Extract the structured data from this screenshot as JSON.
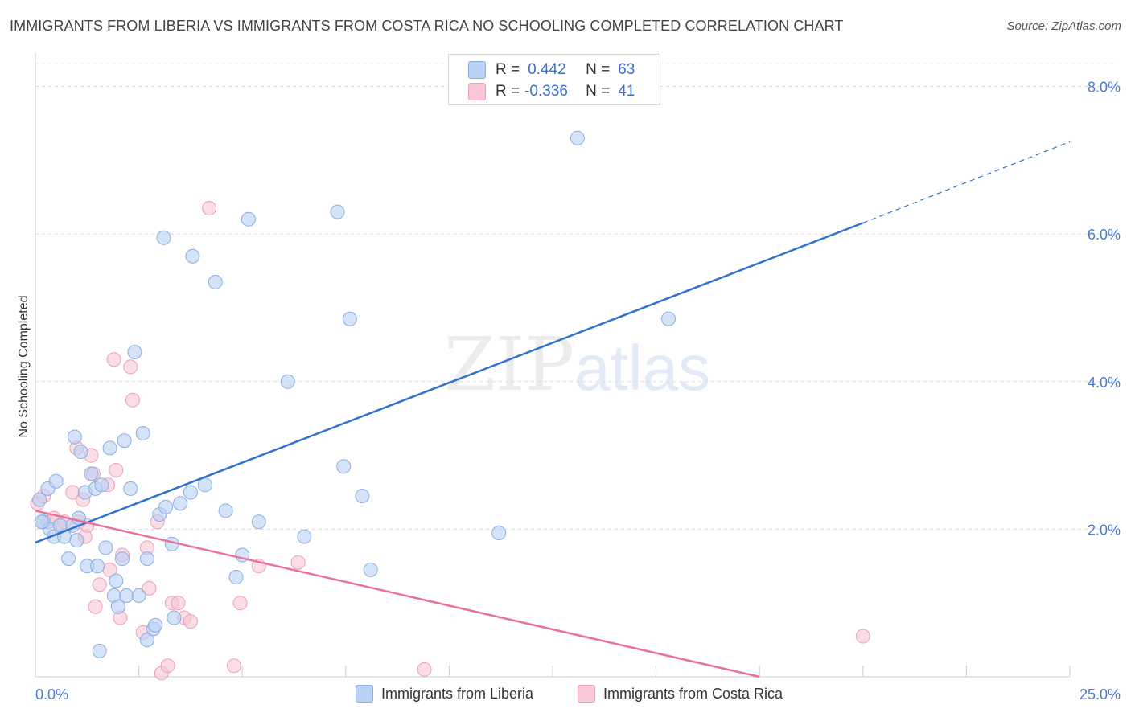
{
  "title": "IMMIGRANTS FROM LIBERIA VS IMMIGRANTS FROM COSTA RICA NO SCHOOLING COMPLETED CORRELATION CHART",
  "source": "Source: ZipAtlas.com",
  "watermark": {
    "zip": "ZIP",
    "atlas": "atlas"
  },
  "legend": {
    "r_label": "R =",
    "n_label": "N =",
    "liberia": {
      "r": "0.442",
      "n": "63"
    },
    "costa_rica": {
      "r": "-0.336",
      "n": "41"
    }
  },
  "colors": {
    "liberia_fill": "#b9d1f5",
    "liberia_stroke": "#8aaee0",
    "liberia_line": "#2f72d0",
    "costa_rica_fill": "#f8c6d6",
    "costa_rica_stroke": "#eaa0b9",
    "costa_rica_line": "#e8729b",
    "tick": "#4a7bd0"
  },
  "chart_data": {
    "type": "scatter",
    "title": "IMMIGRANTS FROM LIBERIA VS IMMIGRANTS FROM COSTA RICA NO SCHOOLING COMPLETED CORRELATION CHART",
    "xlabel": "",
    "ylabel": "No Schooling Completed",
    "xlim": [
      0,
      25
    ],
    "ylim": [
      0,
      8.3
    ],
    "x_ticks_labeled": [
      "0.0%",
      "25.0%"
    ],
    "y_ticks": [
      2,
      4,
      6,
      8
    ],
    "y_tick_labels": [
      "2.0%",
      "4.0%",
      "6.0%",
      "8.0%"
    ],
    "grid": "horizontal dashed",
    "legend_position": "top-center",
    "series": [
      {
        "name": "Immigrants from Liberia",
        "points": [
          [
            0.1,
            2.4
          ],
          [
            0.2,
            2.1
          ],
          [
            0.3,
            2.55
          ],
          [
            0.35,
            2.0
          ],
          [
            0.45,
            1.9
          ],
          [
            0.5,
            2.65
          ],
          [
            0.6,
            2.05
          ],
          [
            0.7,
            1.9
          ],
          [
            0.8,
            1.6
          ],
          [
            0.9,
            2.05
          ],
          [
            0.95,
            3.25
          ],
          [
            1.0,
            1.85
          ],
          [
            1.05,
            2.15
          ],
          [
            1.1,
            3.05
          ],
          [
            1.2,
            2.5
          ],
          [
            1.25,
            1.5
          ],
          [
            1.35,
            2.75
          ],
          [
            1.45,
            2.55
          ],
          [
            1.5,
            1.5
          ],
          [
            1.55,
            0.35
          ],
          [
            1.6,
            2.6
          ],
          [
            1.7,
            1.75
          ],
          [
            1.8,
            3.1
          ],
          [
            1.9,
            1.1
          ],
          [
            1.95,
            1.3
          ],
          [
            2.0,
            0.95
          ],
          [
            2.1,
            1.6
          ],
          [
            2.15,
            3.2
          ],
          [
            2.2,
            1.1
          ],
          [
            2.3,
            2.55
          ],
          [
            2.4,
            4.4
          ],
          [
            2.5,
            1.1
          ],
          [
            2.6,
            3.3
          ],
          [
            2.7,
            1.6
          ],
          [
            2.7,
            0.5
          ],
          [
            2.85,
            0.65
          ],
          [
            2.9,
            0.7
          ],
          [
            3.0,
            2.2
          ],
          [
            3.1,
            5.95
          ],
          [
            3.15,
            2.3
          ],
          [
            3.3,
            1.8
          ],
          [
            3.35,
            0.8
          ],
          [
            3.5,
            2.35
          ],
          [
            3.75,
            2.5
          ],
          [
            3.8,
            5.7
          ],
          [
            4.1,
            2.6
          ],
          [
            4.35,
            5.35
          ],
          [
            4.6,
            2.25
          ],
          [
            4.85,
            1.35
          ],
          [
            5.0,
            1.65
          ],
          [
            5.15,
            6.2
          ],
          [
            5.4,
            2.1
          ],
          [
            6.1,
            4.0
          ],
          [
            6.5,
            1.9
          ],
          [
            7.3,
            6.3
          ],
          [
            7.45,
            2.85
          ],
          [
            7.6,
            4.85
          ],
          [
            7.9,
            2.45
          ],
          [
            8.1,
            1.45
          ],
          [
            11.2,
            1.95
          ],
          [
            13.1,
            7.3
          ],
          [
            15.3,
            4.85
          ],
          [
            0.15,
            2.1
          ]
        ],
        "trend": {
          "x0": 0,
          "y0": 1.82,
          "x1": 20.0,
          "y1": 6.15,
          "dashed_to_x": 25,
          "dashed_to_y": 7.25
        }
      },
      {
        "name": "Immigrants from Costa Rica",
        "points": [
          [
            0.05,
            2.35
          ],
          [
            0.2,
            2.45
          ],
          [
            0.3,
            2.1
          ],
          [
            0.45,
            2.15
          ],
          [
            0.6,
            2.05
          ],
          [
            0.7,
            2.1
          ],
          [
            0.9,
            2.5
          ],
          [
            1.0,
            3.1
          ],
          [
            1.05,
            2.1
          ],
          [
            1.15,
            2.4
          ],
          [
            1.2,
            1.9
          ],
          [
            1.25,
            2.05
          ],
          [
            1.35,
            3.0
          ],
          [
            1.4,
            2.75
          ],
          [
            1.45,
            0.95
          ],
          [
            1.55,
            1.25
          ],
          [
            1.75,
            2.6
          ],
          [
            1.8,
            1.45
          ],
          [
            1.9,
            4.3
          ],
          [
            1.95,
            2.8
          ],
          [
            2.05,
            0.8
          ],
          [
            2.1,
            1.65
          ],
          [
            2.3,
            4.2
          ],
          [
            2.35,
            3.75
          ],
          [
            2.6,
            0.6
          ],
          [
            2.7,
            1.75
          ],
          [
            2.75,
            1.2
          ],
          [
            2.95,
            2.1
          ],
          [
            3.05,
            0.05
          ],
          [
            3.2,
            0.15
          ],
          [
            3.3,
            1.0
          ],
          [
            3.45,
            1.0
          ],
          [
            3.6,
            0.8
          ],
          [
            3.75,
            0.75
          ],
          [
            4.2,
            6.35
          ],
          [
            4.8,
            0.15
          ],
          [
            4.95,
            1.0
          ],
          [
            5.4,
            1.5
          ],
          [
            6.35,
            1.55
          ],
          [
            9.4,
            0.1
          ],
          [
            20.0,
            0.55
          ]
        ],
        "trend": {
          "x0": 0,
          "y0": 2.25,
          "x1": 17.5,
          "y1": 0.0
        }
      }
    ]
  },
  "bottom_legend": {
    "liberia": "Immigrants from Liberia",
    "costa_rica": "Immigrants from Costa Rica"
  }
}
